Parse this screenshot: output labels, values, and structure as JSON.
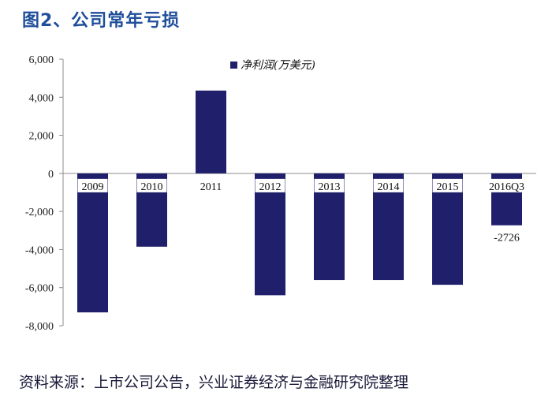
{
  "header": {
    "title": "图2、公司常年亏损"
  },
  "footer": {
    "source": "资料来源：上市公司公告，兴业证券经济与金融研究院整理"
  },
  "chart_data": {
    "type": "bar",
    "title": "",
    "xlabel": "",
    "ylabel": "",
    "categories": [
      "2009",
      "2010",
      "2011",
      "2012",
      "2013",
      "2014",
      "2015",
      "2016Q3"
    ],
    "series": [
      {
        "name": "净利润(万美元)",
        "values": [
          -7300,
          -3850,
          4350,
          -6400,
          -5600,
          -5600,
          -5850,
          -2726
        ]
      }
    ],
    "data_labels": [
      {
        "category": "2016Q3",
        "text": "-2726"
      }
    ],
    "ylim": [
      -8000,
      6000
    ],
    "yticks": [
      "6,000",
      "4,000",
      "2,000",
      "0",
      "-2,000",
      "-4,000",
      "-6,000",
      "-8,000"
    ],
    "ytick_values": [
      6000,
      4000,
      2000,
      0,
      -2000,
      -4000,
      -6000,
      -8000
    ],
    "grid": false,
    "legend_position": "top-center",
    "colors": {
      "bar": "#1f1f6b",
      "axis": "#8c8c8c"
    }
  }
}
